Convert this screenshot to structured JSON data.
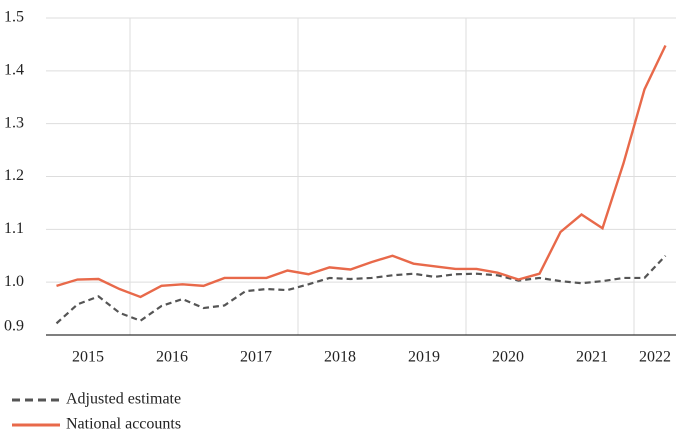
{
  "chart_data": {
    "type": "line",
    "x": [
      2015.125,
      2015.375,
      2015.625,
      2015.875,
      2016.125,
      2016.375,
      2016.625,
      2016.875,
      2017.125,
      2017.375,
      2017.625,
      2017.875,
      2018.125,
      2018.375,
      2018.625,
      2018.875,
      2019.125,
      2019.375,
      2019.625,
      2019.875,
      2020.125,
      2020.375,
      2020.625,
      2020.875,
      2021.125,
      2021.375,
      2021.625,
      2021.875,
      2022.125,
      2022.375
    ],
    "series": [
      {
        "name": "Adjusted estimate",
        "color": "#555555",
        "dash": true,
        "values": [
          0.922,
          0.958,
          0.973,
          0.942,
          0.927,
          0.955,
          0.968,
          0.951,
          0.956,
          0.983,
          0.987,
          0.985,
          0.996,
          1.008,
          1.006,
          1.008,
          1.013,
          1.016,
          1.01,
          1.015,
          1.016,
          1.013,
          1.003,
          1.008,
          1.002,
          0.998,
          1.002,
          1.008,
          1.008,
          1.05
        ]
      },
      {
        "name": "National accounts",
        "color": "#e8694a",
        "dash": false,
        "values": [
          0.993,
          1.005,
          1.006,
          0.987,
          0.972,
          0.993,
          0.996,
          0.993,
          1.008,
          1.008,
          1.008,
          1.022,
          1.015,
          1.028,
          1.024,
          1.038,
          1.05,
          1.035,
          1.03,
          1.025,
          1.025,
          1.018,
          1.005,
          1.016,
          1.095,
          1.128,
          1.102,
          1.225,
          1.365,
          1.448
        ]
      }
    ],
    "xlim": [
      2015,
      2022.5
    ],
    "xticks": [
      {
        "value": 2015.5,
        "label": "2015"
      },
      {
        "value": 2016.5,
        "label": "2016"
      },
      {
        "value": 2017.5,
        "label": "2017"
      },
      {
        "value": 2018.5,
        "label": "2018"
      },
      {
        "value": 2019.5,
        "label": "2019"
      },
      {
        "value": 2020.5,
        "label": "2020"
      },
      {
        "value": 2021.5,
        "label": "2021"
      },
      {
        "value": 2022.25,
        "label": "2022"
      }
    ],
    "xgrid": [
      2016,
      2018,
      2020,
      2022
    ],
    "ylim": [
      0.9,
      1.5
    ],
    "yticks": [
      0.9,
      {
        "value": 1,
        "label": "1.0"
      },
      1.1,
      1.2,
      1.3,
      1.4,
      1.5
    ],
    "grid": true
  }
}
